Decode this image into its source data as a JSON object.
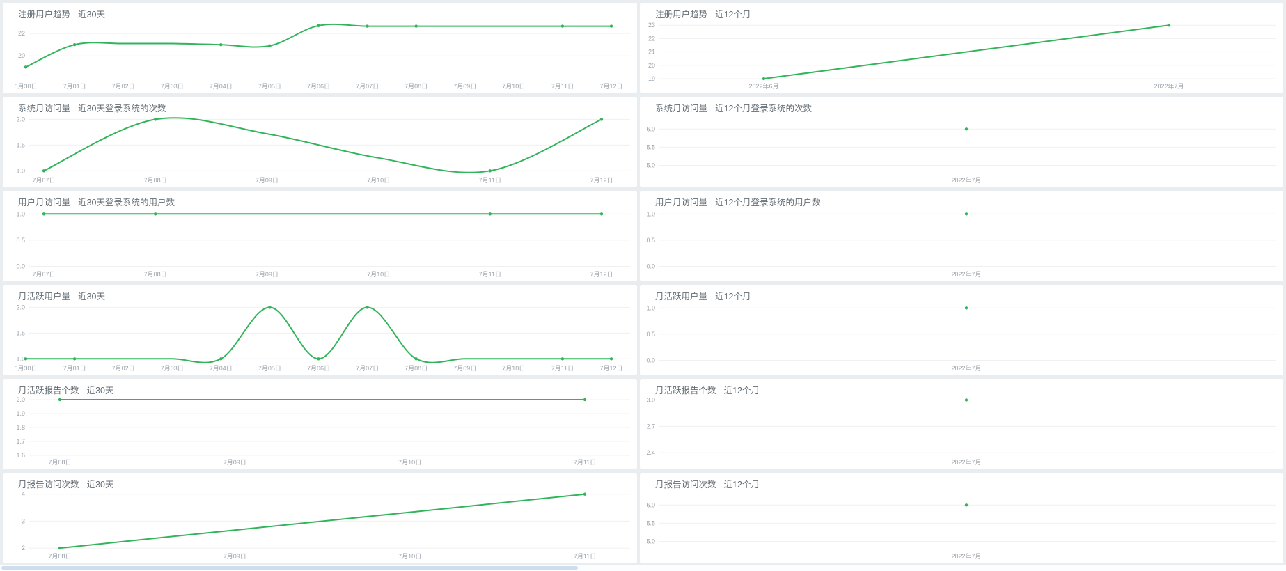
{
  "page": {
    "background": "#eaedf0",
    "panel_background": "#ffffff",
    "accent_line_color": "#33b45c",
    "grid_line_color": "#f0f0f0",
    "title_text_color": "#646e75",
    "tick_text_color": "#9ba3aa",
    "scrollbar_color": "#cfdeee"
  },
  "chart_data": [
    {
      "id": "registered-users-trend-30d",
      "column": "left",
      "type": "line",
      "smooth": true,
      "title": "注册用户趋势 - 近30天",
      "categories": [
        "6月30日",
        "7月01日",
        "7月02日",
        "7月03日",
        "7月04日",
        "7月05日",
        "7月06日",
        "7月07日",
        "7月08日",
        "7月09日",
        "7月10日",
        "7月11日",
        "7月12日"
      ],
      "values": [
        19,
        21,
        21.1,
        21.1,
        21,
        20.9,
        22.7,
        22.65,
        22.65,
        22.65,
        22.65,
        22.65,
        22.65
      ],
      "marker_indices": [
        0,
        1,
        4,
        5,
        6,
        7,
        8,
        11,
        12
      ],
      "y_tick_labels": [
        "22",
        "20"
      ],
      "ylim": [
        17.9,
        23.0
      ]
    },
    {
      "id": "registered-users-trend-12m",
      "column": "right",
      "type": "line",
      "smooth": false,
      "title": "注册用户趋势 - 近12个月",
      "categories": [
        "2022年6月",
        "2022年7月"
      ],
      "values": [
        19,
        23
      ],
      "marker_indices": [
        0,
        1
      ],
      "y_tick_labels": [
        "23",
        "22",
        "21",
        "20",
        "19"
      ],
      "ylim": [
        18.95,
        23.22
      ]
    },
    {
      "id": "system-monthly-visits-30d",
      "column": "left",
      "type": "line",
      "smooth": true,
      "title": "系统月访问量 - 近30天登录系统的次数",
      "categories": [
        "7月07日",
        "7月08日",
        "7月09日",
        "7月10日",
        "7月11日",
        "7月12日"
      ],
      "values": [
        1,
        2,
        1.72,
        1.25,
        1,
        2
      ],
      "marker_indices": [
        0,
        1,
        4,
        5
      ],
      "y_tick_labels": [
        "2.0",
        "1.5",
        "1.0"
      ],
      "ylim": [
        0.95,
        2.06
      ]
    },
    {
      "id": "system-monthly-visits-12m",
      "column": "right",
      "type": "scatter",
      "smooth": false,
      "title": "系统月访问量 - 近12个月登录系统的次数",
      "categories": [
        "2022年7月"
      ],
      "values": [
        6.0
      ],
      "marker_indices": [
        0
      ],
      "y_tick_labels": [
        "6.0",
        "5.5",
        "5.0"
      ],
      "ylim": [
        4.78,
        6.35
      ]
    },
    {
      "id": "user-monthly-visits-30d",
      "column": "left",
      "type": "line",
      "smooth": false,
      "title": "用户月访问量 - 近30天登录系统的用户数",
      "categories": [
        "7月07日",
        "7月08日",
        "7月09日",
        "7月10日",
        "7月11日",
        "7月12日"
      ],
      "values": [
        1,
        1,
        1,
        1,
        1,
        1
      ],
      "marker_indices": [
        0,
        1,
        4,
        5
      ],
      "y_tick_labels": [
        "1.0",
        "0.5",
        "0.0"
      ],
      "ylim": [
        -0.02,
        1.07
      ]
    },
    {
      "id": "user-monthly-visits-12m",
      "column": "right",
      "type": "scatter",
      "smooth": false,
      "title": "用户月访问量 - 近12个月登录系统的用户数",
      "categories": [
        "2022年7月"
      ],
      "values": [
        1.0
      ],
      "marker_indices": [
        0
      ],
      "y_tick_labels": [
        "1.0",
        "0.5",
        "0.0"
      ],
      "ylim": [
        -0.02,
        1.07
      ]
    },
    {
      "id": "monthly-active-users-30d",
      "column": "left",
      "type": "line",
      "smooth": true,
      "title": "月活跃用户量 - 近30天",
      "categories": [
        "6月30日",
        "7月01日",
        "7月02日",
        "7月03日",
        "7月04日",
        "7月05日",
        "7月06日",
        "7月07日",
        "7月08日",
        "7月09日",
        "7月10日",
        "7月11日",
        "7月12日"
      ],
      "values": [
        1,
        1,
        1,
        1,
        1,
        2,
        1,
        2,
        1,
        1,
        1,
        1,
        1
      ],
      "marker_indices": [
        0,
        1,
        4,
        5,
        6,
        7,
        8,
        11,
        12
      ],
      "y_tick_labels": [
        "2.0",
        "1.5",
        "1.0"
      ],
      "ylim": [
        0.95,
        2.06
      ]
    },
    {
      "id": "monthly-active-users-12m",
      "column": "right",
      "type": "scatter",
      "smooth": false,
      "title": "月活跃用户量 - 近12个月",
      "categories": [
        "2022年7月"
      ],
      "values": [
        1.0
      ],
      "marker_indices": [
        0
      ],
      "y_tick_labels": [
        "1.0",
        "0.5",
        "0.0"
      ],
      "ylim": [
        -0.02,
        1.07
      ]
    },
    {
      "id": "monthly-active-reports-30d",
      "column": "left",
      "type": "line",
      "smooth": false,
      "title": "月活跃报告个数 - 近30天",
      "categories": [
        "7月08日",
        "7月09日",
        "7月10日",
        "7月11日"
      ],
      "values": [
        2,
        2,
        2,
        2
      ],
      "marker_indices": [
        0,
        3
      ],
      "y_tick_labels": [
        "2.0",
        "1.9",
        "1.8",
        "1.7",
        "1.6"
      ],
      "ylim": [
        1.6,
        2.01
      ]
    },
    {
      "id": "monthly-active-reports-12m",
      "column": "right",
      "type": "scatter",
      "smooth": false,
      "title": "月活跃报告个数 - 近12个月",
      "categories": [
        "2022年7月"
      ],
      "values": [
        3.0
      ],
      "marker_indices": [
        0
      ],
      "y_tick_labels": [
        "3.0",
        "2.7",
        "2.4"
      ],
      "ylim": [
        2.37,
        3.02
      ]
    },
    {
      "id": "monthly-report-visits-30d",
      "column": "left",
      "type": "line",
      "smooth": false,
      "title": "月报告访问次数 - 近30天",
      "categories": [
        "7月08日",
        "7月09日",
        "7月10日",
        "7月11日"
      ],
      "values": [
        2,
        2.67,
        3.33,
        4
      ],
      "marker_indices": [
        0,
        3
      ],
      "y_tick_labels": [
        "4",
        "3",
        "2"
      ],
      "ylim": [
        1.95,
        4.07
      ]
    },
    {
      "id": "monthly-report-visits-12m",
      "column": "right",
      "type": "scatter",
      "smooth": false,
      "title": "月报告访问次数 - 近12个月",
      "categories": [
        "2022年7月"
      ],
      "values": [
        6.0
      ],
      "marker_indices": [
        0
      ],
      "y_tick_labels": [
        "6.0",
        "5.5",
        "5.0"
      ],
      "ylim": [
        4.78,
        6.35
      ]
    }
  ]
}
